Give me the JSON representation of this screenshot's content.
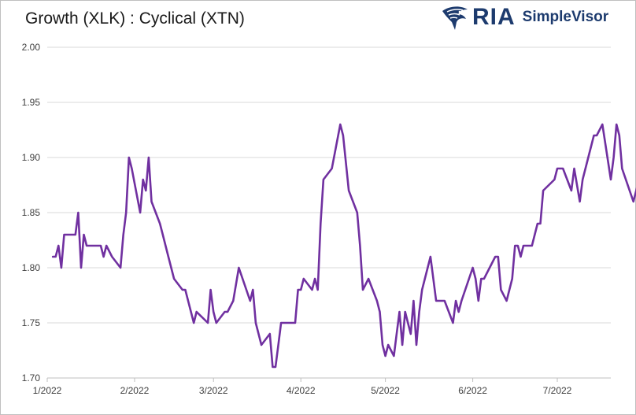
{
  "header": {
    "title": "Growth (XLK) : Cyclical (XTN)",
    "logo_brand": "RIA",
    "logo_product": "SimpleVisor",
    "logo_icon": "eagle-icon"
  },
  "chart_data": {
    "type": "line",
    "title": "Growth (XLK) : Cyclical (XTN)",
    "xlabel": "",
    "ylabel": "",
    "ylim": [
      1.7,
      2.0
    ],
    "yticks": [
      "2.00",
      "1.95",
      "1.90",
      "1.85",
      "1.80",
      "1.75",
      "1.70"
    ],
    "ytick_values": [
      2.0,
      1.95,
      1.9,
      1.85,
      1.8,
      1.75,
      1.7
    ],
    "xtick_labels": [
      "1/2022",
      "2/2022",
      "3/2022",
      "4/2022",
      "5/2022",
      "6/2022",
      "7/2022"
    ],
    "xtick_dates": [
      "2022-01-01",
      "2022-02-01",
      "2022-03-01",
      "2022-04-01",
      "2022-05-01",
      "2022-06-01",
      "2022-07-01"
    ],
    "xlim": [
      "2022-01-01",
      "2022-07-20"
    ],
    "grid": "horizontal",
    "legend": "none",
    "series": [
      {
        "color": "#7030a0",
        "points": [
          [
            "2022-01-03",
            1.81
          ],
          [
            "2022-01-04",
            1.81
          ],
          [
            "2022-01-05",
            1.82
          ],
          [
            "2022-01-06",
            1.8
          ],
          [
            "2022-01-07",
            1.83
          ],
          [
            "2022-01-10",
            1.83
          ],
          [
            "2022-01-11",
            1.83
          ],
          [
            "2022-01-12",
            1.85
          ],
          [
            "2022-01-13",
            1.8
          ],
          [
            "2022-01-14",
            1.83
          ],
          [
            "2022-01-15",
            1.82
          ],
          [
            "2022-01-19",
            1.82
          ],
          [
            "2022-01-20",
            1.82
          ],
          [
            "2022-01-21",
            1.81
          ],
          [
            "2022-01-22",
            1.82
          ],
          [
            "2022-01-24",
            1.81
          ],
          [
            "2022-01-27",
            1.8
          ],
          [
            "2022-01-28",
            1.83
          ],
          [
            "2022-01-29",
            1.85
          ],
          [
            "2022-01-30",
            1.9
          ],
          [
            "2022-01-31",
            1.89
          ],
          [
            "2022-02-03",
            1.85
          ],
          [
            "2022-02-04",
            1.88
          ],
          [
            "2022-02-05",
            1.87
          ],
          [
            "2022-02-06",
            1.9
          ],
          [
            "2022-02-07",
            1.86
          ],
          [
            "2022-02-10",
            1.84
          ],
          [
            "2022-02-11",
            1.83
          ],
          [
            "2022-02-13",
            1.81
          ],
          [
            "2022-02-15",
            1.79
          ],
          [
            "2022-02-18",
            1.78
          ],
          [
            "2022-02-19",
            1.78
          ],
          [
            "2022-02-21",
            1.76
          ],
          [
            "2022-02-22",
            1.75
          ],
          [
            "2022-02-23",
            1.76
          ],
          [
            "2022-02-27",
            1.75
          ],
          [
            "2022-02-28",
            1.78
          ],
          [
            "2022-03-01",
            1.76
          ],
          [
            "2022-03-02",
            1.75
          ],
          [
            "2022-03-05",
            1.76
          ],
          [
            "2022-03-06",
            1.76
          ],
          [
            "2022-03-08",
            1.77
          ],
          [
            "2022-03-10",
            1.8
          ],
          [
            "2022-03-14",
            1.77
          ],
          [
            "2022-03-15",
            1.78
          ],
          [
            "2022-03-16",
            1.75
          ],
          [
            "2022-03-18",
            1.73
          ],
          [
            "2022-03-21",
            1.74
          ],
          [
            "2022-03-22",
            1.71
          ],
          [
            "2022-03-23",
            1.71
          ],
          [
            "2022-03-24",
            1.73
          ],
          [
            "2022-03-25",
            1.75
          ],
          [
            "2022-03-30",
            1.75
          ],
          [
            "2022-03-31",
            1.78
          ],
          [
            "2022-04-01",
            1.78
          ],
          [
            "2022-04-02",
            1.79
          ],
          [
            "2022-04-05",
            1.78
          ],
          [
            "2022-04-06",
            1.79
          ],
          [
            "2022-04-07",
            1.78
          ],
          [
            "2022-04-08",
            1.84
          ],
          [
            "2022-04-09",
            1.88
          ],
          [
            "2022-04-12",
            1.89
          ],
          [
            "2022-04-15",
            1.93
          ],
          [
            "2022-04-16",
            1.92
          ],
          [
            "2022-04-18",
            1.87
          ],
          [
            "2022-04-21",
            1.85
          ],
          [
            "2022-04-22",
            1.82
          ],
          [
            "2022-04-23",
            1.78
          ],
          [
            "2022-04-25",
            1.79
          ],
          [
            "2022-04-28",
            1.77
          ],
          [
            "2022-04-29",
            1.76
          ],
          [
            "2022-04-30",
            1.73
          ],
          [
            "2022-05-01",
            1.72
          ],
          [
            "2022-05-02",
            1.73
          ],
          [
            "2022-05-04",
            1.72
          ],
          [
            "2022-05-05",
            1.74
          ],
          [
            "2022-05-06",
            1.76
          ],
          [
            "2022-05-07",
            1.73
          ],
          [
            "2022-05-08",
            1.76
          ],
          [
            "2022-05-10",
            1.74
          ],
          [
            "2022-05-11",
            1.77
          ],
          [
            "2022-05-12",
            1.73
          ],
          [
            "2022-05-13",
            1.76
          ],
          [
            "2022-05-14",
            1.78
          ],
          [
            "2022-05-17",
            1.81
          ],
          [
            "2022-05-18",
            1.79
          ],
          [
            "2022-05-19",
            1.77
          ],
          [
            "2022-05-21",
            1.77
          ],
          [
            "2022-05-22",
            1.77
          ],
          [
            "2022-05-25",
            1.75
          ],
          [
            "2022-05-26",
            1.77
          ],
          [
            "2022-05-27",
            1.76
          ],
          [
            "2022-05-28",
            1.77
          ],
          [
            "2022-06-01",
            1.8
          ],
          [
            "2022-06-02",
            1.79
          ],
          [
            "2022-06-03",
            1.77
          ],
          [
            "2022-06-04",
            1.79
          ],
          [
            "2022-06-05",
            1.79
          ],
          [
            "2022-06-09",
            1.81
          ],
          [
            "2022-06-10",
            1.81
          ],
          [
            "2022-06-11",
            1.78
          ],
          [
            "2022-06-13",
            1.77
          ],
          [
            "2022-06-15",
            1.79
          ],
          [
            "2022-06-16",
            1.82
          ],
          [
            "2022-06-17",
            1.82
          ],
          [
            "2022-06-18",
            1.81
          ],
          [
            "2022-06-19",
            1.82
          ],
          [
            "2022-06-22",
            1.82
          ],
          [
            "2022-06-24",
            1.84
          ],
          [
            "2022-06-25",
            1.84
          ],
          [
            "2022-06-26",
            1.87
          ],
          [
            "2022-06-30",
            1.88
          ],
          [
            "2022-07-01",
            1.89
          ],
          [
            "2022-07-02",
            1.89
          ],
          [
            "2022-07-03",
            1.89
          ],
          [
            "2022-07-06",
            1.87
          ],
          [
            "2022-07-07",
            1.89
          ],
          [
            "2022-07-09",
            1.86
          ],
          [
            "2022-07-10",
            1.88
          ],
          [
            "2022-07-14",
            1.92
          ],
          [
            "2022-07-15",
            1.92
          ],
          [
            "2022-07-17",
            1.93
          ],
          [
            "2022-07-20",
            1.88
          ],
          [
            "2022-07-21",
            1.9
          ],
          [
            "2022-07-22",
            1.93
          ],
          [
            "2022-07-23",
            1.92
          ],
          [
            "2022-07-24",
            1.89
          ],
          [
            "2022-07-28",
            1.86
          ],
          [
            "2022-07-30",
            1.88
          ]
        ]
      }
    ]
  }
}
